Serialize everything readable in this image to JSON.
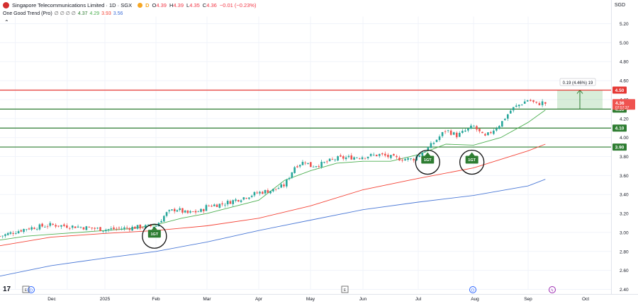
{
  "header": {
    "title": "Singapore Telecommunications Limited · 1D · SGX",
    "open_label": "O",
    "open": "4.39",
    "high_label": "H",
    "high": "4.39",
    "low_label": "L",
    "low": "4.35",
    "close_label": "C",
    "close": "4.36",
    "change": "−0.01 (−0.23%)",
    "indicator_name": "One Good Trend (Pro)",
    "indicator_flags": "∅ ∅ ∅ ∅",
    "ind_values": [
      "4.37",
      "4.29",
      "3.93",
      "3.56"
    ],
    "ind_colors": [
      "#2e7d32",
      "#4caf50",
      "#f44336",
      "#3f6fd8"
    ],
    "collapse_icon": "chevron-up-icon",
    "currency": "SGD"
  },
  "colors": {
    "up": "#26a69a",
    "down": "#ef5350",
    "sma_fast": "#4caf50",
    "sma_mid": "#f44336",
    "sma_slow": "#4a78d6",
    "resistance": "#e53935",
    "support": "#2e7d32"
  },
  "chart_data": {
    "type": "candlestick",
    "title": "Singapore Telecommunications Limited · 1D · SGX",
    "x_ticks": [
      "Dec",
      "2025",
      "Feb",
      "Mar",
      "Apr",
      "May",
      "Jun",
      "Jul",
      "Aug",
      "Sep",
      "Oct"
    ],
    "y_ticks": [
      "5.20",
      "5.00",
      "4.80",
      "4.60",
      "4.40",
      "4.20",
      "4.00",
      "3.80",
      "3.60",
      "3.40",
      "3.20",
      "3.00",
      "2.80",
      "2.60",
      "2.40"
    ],
    "ylim": [
      2.4,
      5.25
    ],
    "x_range_months": [
      0,
      10.9
    ],
    "horizontal_levels": [
      {
        "value": 4.5,
        "label": "4.50",
        "role": "resistance"
      },
      {
        "value": 4.3,
        "label": "4.30",
        "role": "support"
      },
      {
        "value": 4.1,
        "label": "4.10",
        "role": "support"
      },
      {
        "value": 3.9,
        "label": "3.90",
        "role": "support"
      }
    ],
    "price_label": {
      "value": 4.36,
      "text": "4.36",
      "timer": "07:57:37"
    },
    "measure_box": {
      "from": 4.3,
      "to": 4.5,
      "text": "0.19 (4.46%) 19"
    },
    "signals": [
      {
        "month": 2.97,
        "price": 3.02,
        "label": "1GT"
      },
      {
        "month": 8.17,
        "price": 3.8,
        "label": "1GT"
      },
      {
        "month": 8.97,
        "price": 3.8,
        "label": "1GT"
      }
    ],
    "series": [
      {
        "kind": "sma_fast",
        "x": [
          0,
          0.5,
          1,
          1.5,
          2,
          2.5,
          3,
          3.5,
          4,
          4.5,
          5,
          5.5,
          6,
          6.5,
          7,
          7.5,
          8,
          8.5,
          9,
          9.5,
          10,
          10.3
        ],
        "values": [
          2.92,
          2.96,
          2.98,
          3.0,
          3.02,
          3.04,
          3.08,
          3.15,
          3.2,
          3.27,
          3.34,
          3.55,
          3.65,
          3.73,
          3.75,
          3.75,
          3.82,
          3.93,
          3.92,
          4.0,
          4.16,
          4.29
        ]
      },
      {
        "kind": "sma_mid",
        "x": [
          0,
          1,
          2,
          3,
          4,
          5,
          6,
          7,
          8,
          9,
          10,
          10.3
        ],
        "values": [
          2.86,
          2.95,
          2.99,
          3.02,
          3.07,
          3.15,
          3.28,
          3.45,
          3.57,
          3.68,
          3.86,
          3.93
        ]
      },
      {
        "kind": "sma_slow",
        "x": [
          0,
          1,
          2,
          3,
          4,
          5,
          6,
          7,
          8,
          9,
          10,
          10.3
        ],
        "values": [
          2.54,
          2.65,
          2.73,
          2.8,
          2.9,
          3.02,
          3.13,
          3.24,
          3.32,
          3.39,
          3.49,
          3.56
        ]
      }
    ],
    "candles_anchor": {
      "x": [
        0,
        0.5,
        1,
        1.5,
        2,
        2.5,
        3,
        3.2,
        3.4,
        3.6,
        3.9,
        4,
        4.3,
        4.6,
        5,
        5.3,
        5.5,
        5.7,
        5.9,
        6,
        6.2,
        6.5,
        7,
        7.3,
        7.6,
        7.9,
        8.2,
        8.5,
        8.7,
        9,
        9.2,
        9.5,
        9.7,
        10,
        10.15,
        10.25,
        10.3
      ],
      "close": [
        2.96,
        3.04,
        3.08,
        3.06,
        3.03,
        3.05,
        3.07,
        3.2,
        3.25,
        3.2,
        3.23,
        3.28,
        3.3,
        3.35,
        3.42,
        3.45,
        3.5,
        3.7,
        3.75,
        3.7,
        3.72,
        3.78,
        3.8,
        3.82,
        3.78,
        3.77,
        3.9,
        4.08,
        4.02,
        4.12,
        4.0,
        4.15,
        4.3,
        4.4,
        4.35,
        4.37,
        4.36
      ]
    },
    "candle_count": 200
  }
}
